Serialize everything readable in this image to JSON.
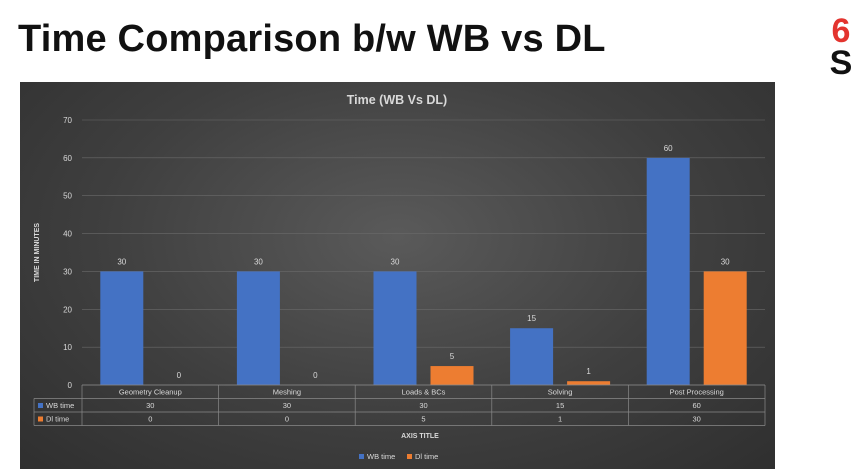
{
  "slide": {
    "title": "Time Comparison b/w WB vs DL"
  },
  "logo": {
    "text_top": "6",
    "text_bottom": "S",
    "color_top": "#e3342f",
    "color_bottom": "#111111"
  },
  "chart_data": {
    "type": "bar",
    "title": "Time (WB Vs DL)",
    "xlabel": "AXIS TITLE",
    "ylabel": "TIME IN MINUTES",
    "ylim": [
      0,
      70
    ],
    "yticks": [
      0,
      10,
      20,
      30,
      40,
      50,
      60,
      70
    ],
    "categories": [
      "Geometry Cleanup",
      "Meshing",
      "Loads & BCs",
      "Solving",
      "Post Processing"
    ],
    "series": [
      {
        "name": "WB time",
        "values": [
          30,
          30,
          30,
          15,
          60
        ],
        "color": "#4472c4"
      },
      {
        "name": "Dl time",
        "values": [
          0,
          0,
          5,
          1,
          30
        ],
        "color": "#ed7d31"
      }
    ],
    "data_table": true,
    "legend": "bottom",
    "grid": true
  }
}
